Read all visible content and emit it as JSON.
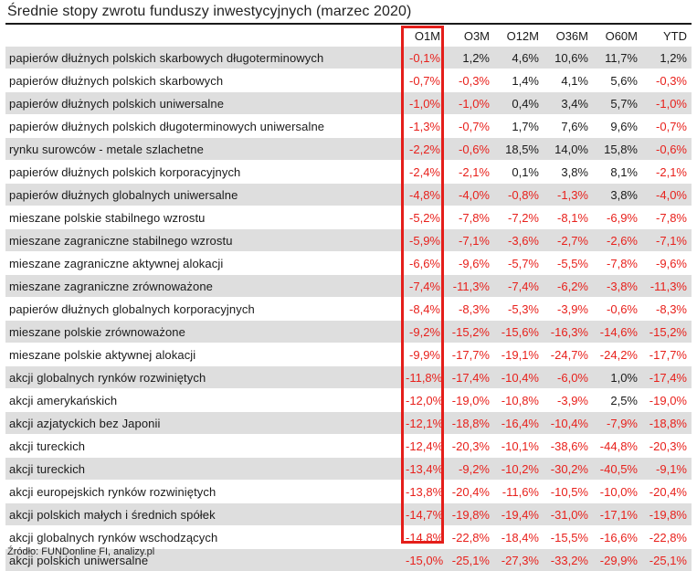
{
  "title": "Średnie stopy zwrotu funduszy inwestycyjnych (marzec 2020)",
  "columns": [
    "O1M",
    "O3M",
    "O12M",
    "O36M",
    "O60M",
    "YTD"
  ],
  "rows": [
    {
      "label": "papierów dłużnych polskich skarbowych długoterminowych",
      "values": [
        "-0,1%",
        "1,2%",
        "4,6%",
        "10,6%",
        "11,7%",
        "1,2%"
      ]
    },
    {
      "label": "papierów dłużnych polskich skarbowych",
      "values": [
        "-0,7%",
        "-0,3%",
        "1,4%",
        "4,1%",
        "5,6%",
        "-0,3%"
      ]
    },
    {
      "label": "papierów dłużnych polskich uniwersalne",
      "values": [
        "-1,0%",
        "-1,0%",
        "0,4%",
        "3,4%",
        "5,7%",
        "-1,0%"
      ]
    },
    {
      "label": "papierów dłużnych polskich długoterminowych uniwersalne",
      "values": [
        "-1,3%",
        "-0,7%",
        "1,7%",
        "7,6%",
        "9,6%",
        "-0,7%"
      ]
    },
    {
      "label": "rynku surowców - metale szlachetne",
      "values": [
        "-2,2%",
        "-0,6%",
        "18,5%",
        "14,0%",
        "15,8%",
        "-0,6%"
      ]
    },
    {
      "label": "papierów dłużnych polskich korporacyjnych",
      "values": [
        "-2,4%",
        "-2,1%",
        "0,1%",
        "3,8%",
        "8,1%",
        "-2,1%"
      ]
    },
    {
      "label": "papierów dłużnych globalnych uniwersalne",
      "values": [
        "-4,8%",
        "-4,0%",
        "-0,8%",
        "-1,3%",
        "3,8%",
        "-4,0%"
      ]
    },
    {
      "label": "mieszane polskie stabilnego wzrostu",
      "values": [
        "-5,2%",
        "-7,8%",
        "-7,2%",
        "-8,1%",
        "-6,9%",
        "-7,8%"
      ]
    },
    {
      "label": "mieszane zagraniczne stabilnego wzrostu",
      "values": [
        "-5,9%",
        "-7,1%",
        "-3,6%",
        "-2,7%",
        "-2,6%",
        "-7,1%"
      ]
    },
    {
      "label": "mieszane zagraniczne aktywnej alokacji",
      "values": [
        "-6,6%",
        "-9,6%",
        "-5,7%",
        "-5,5%",
        "-7,8%",
        "-9,6%"
      ]
    },
    {
      "label": "mieszane zagraniczne zrównoważone",
      "values": [
        "-7,4%",
        "-11,3%",
        "-7,4%",
        "-6,2%",
        "-3,8%",
        "-11,3%"
      ]
    },
    {
      "label": "papierów dłużnych globalnych korporacyjnych",
      "values": [
        "-8,4%",
        "-8,3%",
        "-5,3%",
        "-3,9%",
        "-0,6%",
        "-8,3%"
      ]
    },
    {
      "label": "mieszane polskie zrównoważone",
      "values": [
        "-9,2%",
        "-15,2%",
        "-15,6%",
        "-16,3%",
        "-14,6%",
        "-15,2%"
      ]
    },
    {
      "label": "mieszane polskie aktywnej alokacji",
      "values": [
        "-9,9%",
        "-17,7%",
        "-19,1%",
        "-24,7%",
        "-24,2%",
        "-17,7%"
      ]
    },
    {
      "label": "akcji globalnych rynków rozwiniętych",
      "values": [
        "-11,8%",
        "-17,4%",
        "-10,4%",
        "-6,0%",
        "1,0%",
        "-17,4%"
      ]
    },
    {
      "label": "akcji amerykańskich",
      "values": [
        "-12,0%",
        "-19,0%",
        "-10,8%",
        "-3,9%",
        "2,5%",
        "-19,0%"
      ]
    },
    {
      "label": "akcji azjatyckich bez Japonii",
      "values": [
        "-12,1%",
        "-18,8%",
        "-16,4%",
        "-10,4%",
        "-7,9%",
        "-18,8%"
      ]
    },
    {
      "label": "akcji tureckich",
      "values": [
        "-12,4%",
        "-20,3%",
        "-10,1%",
        "-38,6%",
        "-44,8%",
        "-20,3%"
      ]
    },
    {
      "label": "akcji tureckich",
      "values": [
        "-13,4%",
        "-9,2%",
        "-10,2%",
        "-30,2%",
        "-40,5%",
        "-9,1%"
      ]
    },
    {
      "label": "akcji europejskich rynków rozwiniętych",
      "values": [
        "-13,8%",
        "-20,4%",
        "-11,6%",
        "-10,5%",
        "-10,0%",
        "-20,4%"
      ]
    },
    {
      "label": "akcji polskich małych i średnich spółek",
      "values": [
        "-14,7%",
        "-19,8%",
        "-19,4%",
        "-31,0%",
        "-17,1%",
        "-19,8%"
      ]
    },
    {
      "label": "akcji globalnych rynków wschodzących",
      "values": [
        "-14,8%",
        "-22,8%",
        "-18,4%",
        "-15,5%",
        "-16,6%",
        "-22,8%"
      ]
    },
    {
      "label": "akcji polskich uniwersalne",
      "values": [
        "-15,0%",
        "-25,1%",
        "-27,3%",
        "-33,2%",
        "-29,9%",
        "-25,1%"
      ]
    }
  ],
  "source": "Źródło: FUNDonline FI, analizy.pl",
  "colors": {
    "negative": "#e8211c",
    "positive": "#1a1a1a",
    "highlight": "#e41e1a",
    "stripe": "#dedede"
  }
}
